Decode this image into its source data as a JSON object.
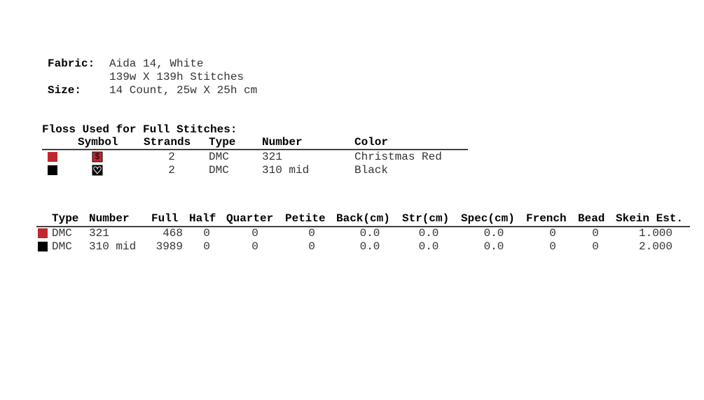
{
  "fabric": {
    "label": "Fabric:",
    "value": "Aida 14, White",
    "stitches": "139w X 139h Stitches"
  },
  "size": {
    "label": "Size:",
    "value": "14 Count,  25w X 25h cm"
  },
  "floss": {
    "title": "Floss Used for Full Stitches:",
    "headers": [
      "Symbol",
      "Strands",
      "Type",
      "Number",
      "Color"
    ],
    "rows": [
      {
        "color": "#c0282d",
        "symbol": "$",
        "strands": "2",
        "type": "DMC",
        "number": "321",
        "name": "Christmas Red"
      },
      {
        "color": "#000000",
        "strands": "2",
        "type": "DMC",
        "number": "310 mid",
        "name": "Black"
      }
    ]
  },
  "summary": {
    "headers": [
      "Type",
      "Number",
      "Full",
      "Half",
      "Quarter",
      "Petite",
      "Back(cm)",
      "Str(cm)",
      "Spec(cm)",
      "French",
      "Bead",
      "Skein Est."
    ],
    "rows": [
      {
        "color": "#c0282d",
        "cells": [
          "DMC",
          "321",
          "468",
          "0",
          "0",
          "0",
          "0.0",
          "0.0",
          "0.0",
          "0",
          "0",
          "1.000"
        ]
      },
      {
        "color": "#000000",
        "cells": [
          "DMC",
          "310 mid",
          "3989",
          "0",
          "0",
          "0",
          "0.0",
          "0.0",
          "0.0",
          "0",
          "0",
          "2.000"
        ]
      }
    ]
  }
}
